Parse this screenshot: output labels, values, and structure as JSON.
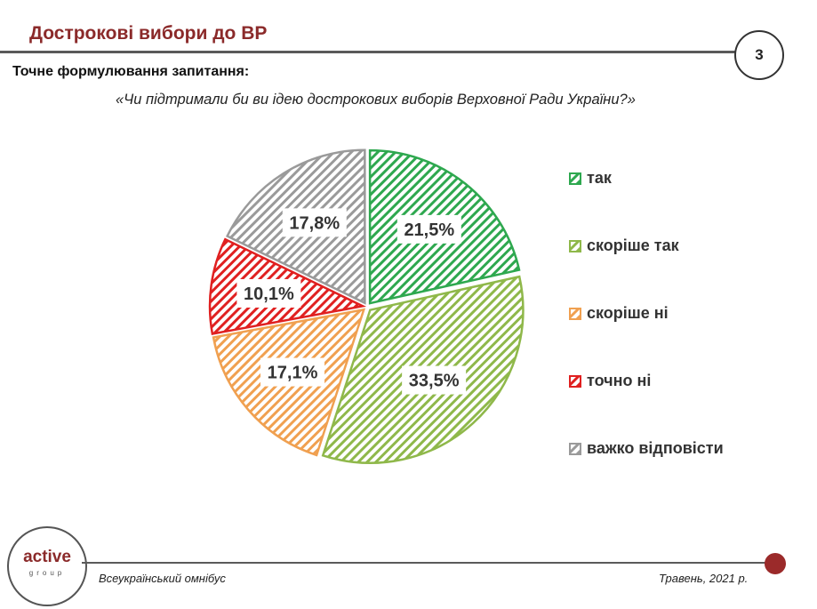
{
  "slide": {
    "title": "Дострокові вибори до ВР",
    "page_number": "3",
    "question_label": "Точне формулювання запитання:",
    "question_text": "«Чи підтримали би ви ідею дострокових виборів Верховної Ради України?»",
    "footer_left": "Всеукраїнський омнібус",
    "footer_right": "Травень, 2021 р.",
    "logo_word": "active",
    "logo_sub": "group"
  },
  "colors": {
    "title": "#8b2a2a",
    "accent_dot": "#9b2a2a"
  },
  "chart_data": {
    "type": "pie",
    "title": "",
    "legend_position": "right",
    "slices": [
      {
        "label": "так",
        "value": 21.5,
        "value_label": "21,5%",
        "color": "#2ea84f"
      },
      {
        "label": "скоріше так",
        "value": 33.5,
        "value_label": "33,5%",
        "color": "#8fb84a"
      },
      {
        "label": "скоріше ні",
        "value": 17.1,
        "value_label": "17,1%",
        "color": "#f0a050"
      },
      {
        "label": "точно ні",
        "value": 10.1,
        "value_label": "10,1%",
        "color": "#e02020"
      },
      {
        "label": "важко відповісти",
        "value": 17.8,
        "value_label": "17,8%",
        "color": "#9a9a9a"
      }
    ]
  }
}
